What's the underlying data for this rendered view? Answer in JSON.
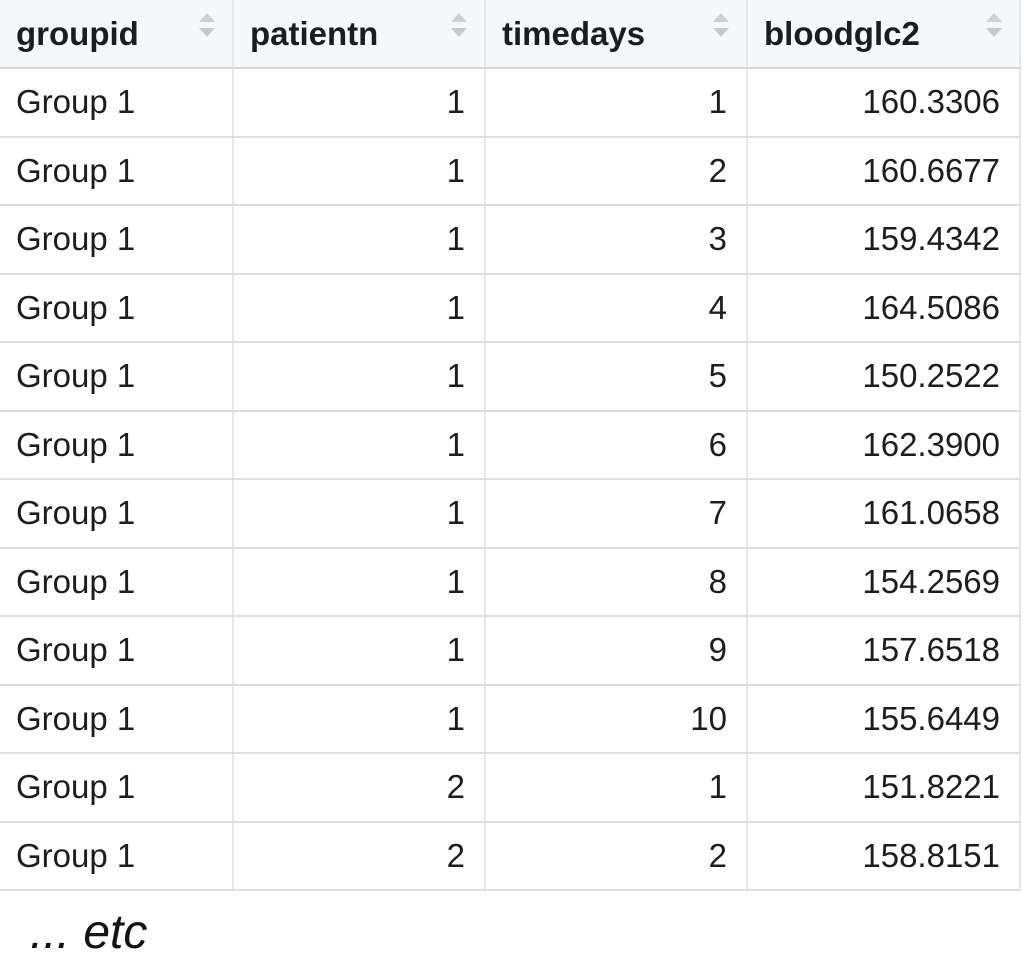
{
  "table": {
    "columns": [
      {
        "id": "groupid",
        "label": "groupid",
        "align": "left"
      },
      {
        "id": "patientn",
        "label": "patientn",
        "align": "right"
      },
      {
        "id": "timedays",
        "label": "timedays",
        "align": "right"
      },
      {
        "id": "bloodglc2",
        "label": "bloodglc2",
        "align": "right"
      }
    ],
    "rows": [
      [
        "Group 1",
        "1",
        "1",
        "160.3306"
      ],
      [
        "Group 1",
        "1",
        "2",
        "160.6677"
      ],
      [
        "Group 1",
        "1",
        "3",
        "159.4342"
      ],
      [
        "Group 1",
        "1",
        "4",
        "164.5086"
      ],
      [
        "Group 1",
        "1",
        "5",
        "150.2522"
      ],
      [
        "Group 1",
        "1",
        "6",
        "162.3900"
      ],
      [
        "Group 1",
        "1",
        "7",
        "161.0658"
      ],
      [
        "Group 1",
        "1",
        "8",
        "154.2569"
      ],
      [
        "Group 1",
        "1",
        "9",
        "157.6518"
      ],
      [
        "Group 1",
        "1",
        "10",
        "155.6449"
      ],
      [
        "Group 1",
        "2",
        "1",
        "151.8221"
      ],
      [
        "Group 1",
        "2",
        "2",
        "158.8151"
      ]
    ]
  },
  "footer": {
    "note": "... etc"
  },
  "icons": {
    "sort": "sort-arrows-icon"
  },
  "colors": {
    "header_bg": "#f6f7f9",
    "row_border": "#dcdfe2",
    "column_border": "#e5e7e9",
    "header_border": "#d4d7da",
    "sort_icon": "#c9ced4",
    "text": "#1b1d1f",
    "background": "#ffffff"
  }
}
